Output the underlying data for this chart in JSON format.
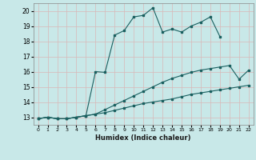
{
  "xlabel": "Humidex (Indice chaleur)",
  "background_color": "#c8e8e8",
  "grid_color": "#d8b8b8",
  "line_color": "#1a6060",
  "xlim": [
    -0.5,
    22.5
  ],
  "ylim": [
    12.5,
    20.5
  ],
  "x_ticks": [
    0,
    1,
    2,
    3,
    4,
    5,
    6,
    7,
    8,
    9,
    10,
    11,
    12,
    13,
    14,
    15,
    16,
    17,
    18,
    19,
    20,
    21,
    22
  ],
  "y_ticks": [
    13,
    14,
    15,
    16,
    17,
    18,
    19,
    20
  ],
  "series1_y": [
    12.9,
    13.0,
    12.9,
    12.9,
    13.0,
    13.1,
    13.2,
    13.3,
    13.45,
    13.6,
    13.75,
    13.9,
    14.0,
    14.1,
    14.2,
    14.35,
    14.5,
    14.6,
    14.7,
    14.8,
    14.9,
    15.0,
    15.1
  ],
  "series2_y": [
    12.9,
    13.0,
    12.9,
    12.9,
    13.0,
    13.1,
    13.2,
    13.5,
    13.8,
    14.1,
    14.4,
    14.7,
    15.0,
    15.3,
    15.55,
    15.75,
    15.95,
    16.1,
    16.2,
    16.3,
    16.4,
    15.5,
    16.1
  ],
  "series3_y": [
    12.9,
    13.0,
    12.9,
    12.9,
    13.0,
    13.1,
    16.0,
    15.95,
    18.4,
    18.7,
    19.6,
    19.7,
    20.2,
    18.6,
    18.8,
    18.6,
    19.0,
    19.25,
    19.6,
    18.3,
    null,
    null,
    null
  ]
}
